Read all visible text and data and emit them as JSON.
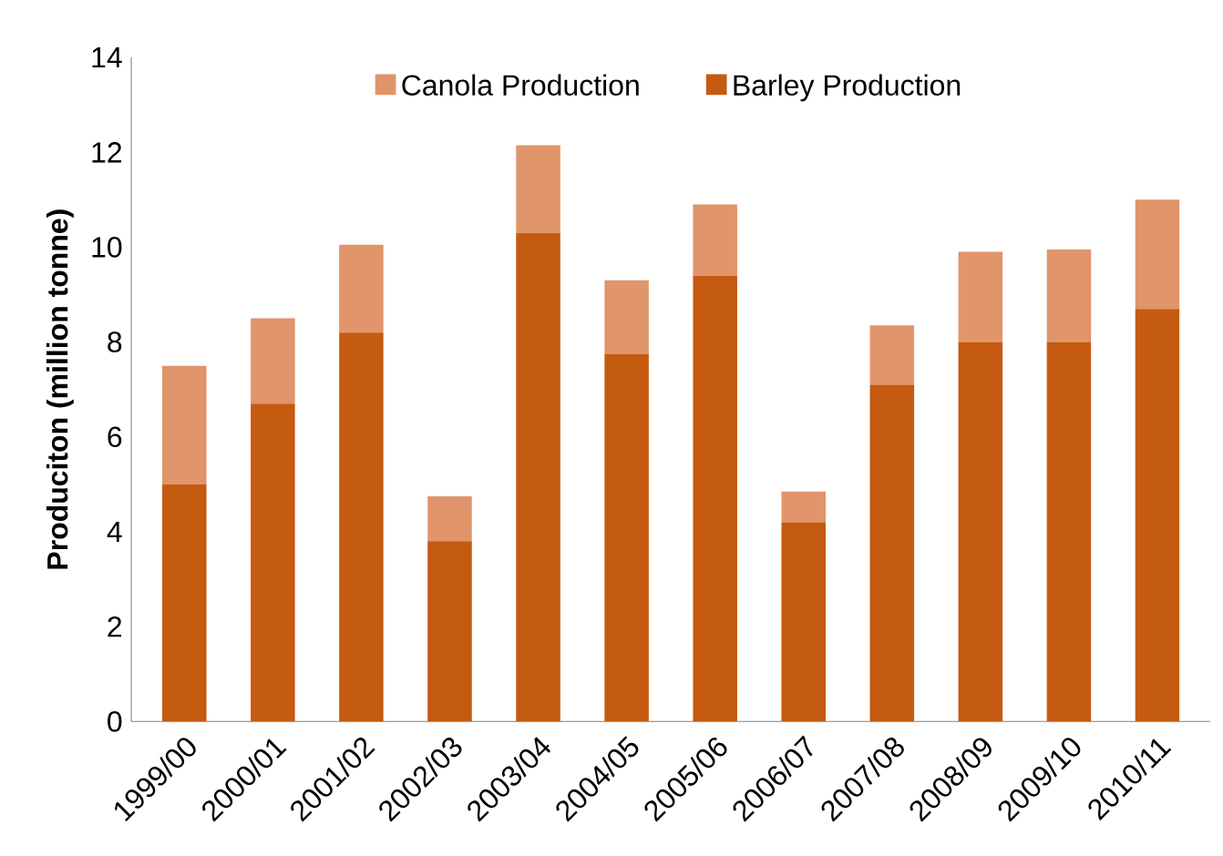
{
  "chart_data": {
    "type": "bar",
    "stacked": true,
    "ylabel": "**Produciton (million tonne)**",
    "categories": [
      "1999/00",
      "2000/01",
      "2001/02",
      "2002/03",
      "2003/04",
      "2004/05",
      "2005/06",
      "2006/07",
      "2007/08",
      "2008/09",
      "2009/10",
      "2010/11"
    ],
    "series": [
      {
        "name": "Barley Production",
        "color": "#c55a11",
        "values": [
          5.0,
          6.7,
          8.2,
          3.8,
          10.3,
          7.75,
          9.4,
          4.2,
          7.1,
          8.0,
          8.0,
          8.7
        ]
      },
      {
        "name": "Canola Production",
        "color": "#e0956a",
        "values": [
          2.5,
          1.8,
          1.85,
          0.95,
          1.85,
          1.55,
          1.5,
          0.65,
          1.25,
          1.9,
          1.95,
          2.3
        ]
      }
    ],
    "ylim": [
      0,
      14
    ],
    "yticks": [
      0,
      2,
      4,
      6,
      8,
      10,
      12,
      14
    ],
    "legend": "top",
    "grid": false
  }
}
